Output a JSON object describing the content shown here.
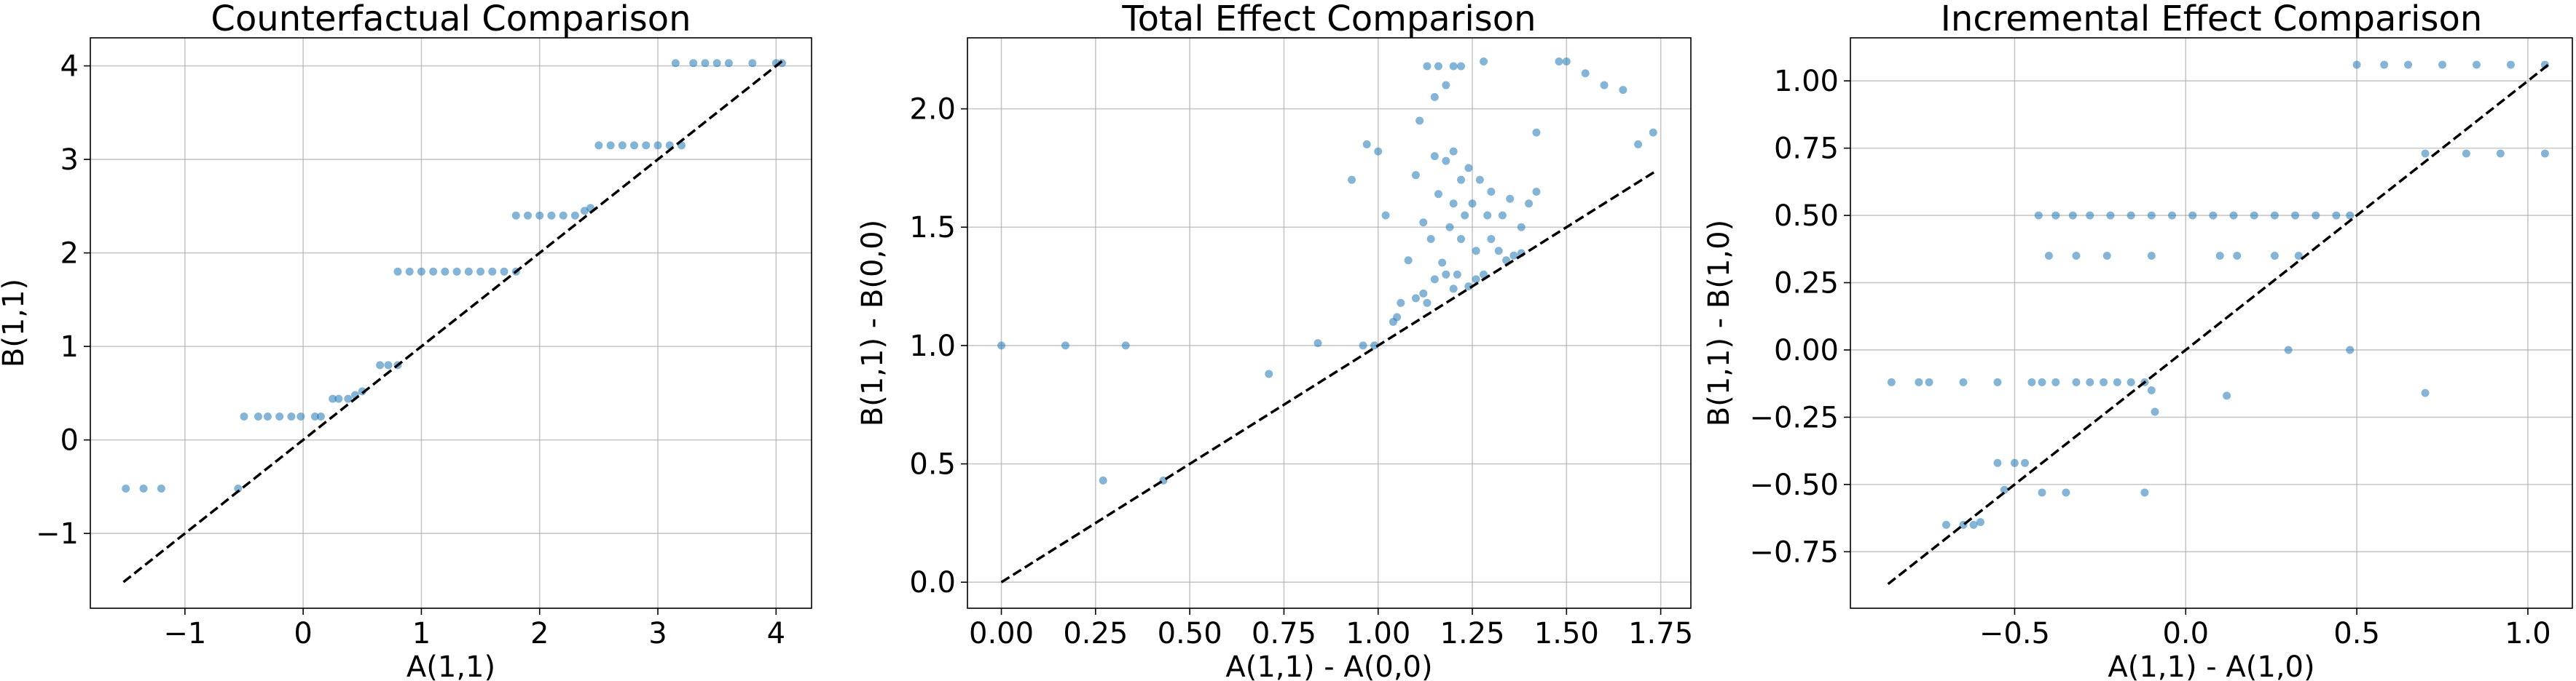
{
  "colors": {
    "points": "#1f77b4",
    "reference_line": "#000000",
    "grid": "#b0b0b0"
  },
  "chart_data": [
    {
      "type": "scatter",
      "title": "Counterfactual Comparison",
      "xlabel": "A(1,1)",
      "ylabel": "B(1,1)",
      "xlim": [
        -1.8,
        4.3
      ],
      "ylim": [
        -1.8,
        4.3
      ],
      "xticks": [
        -1,
        0,
        1,
        2,
        3,
        4
      ],
      "yticks": [
        -1,
        0,
        1,
        2,
        3,
        4
      ],
      "grid": true,
      "reference_line": [
        [
          -1.52,
          -1.52
        ],
        [
          4.05,
          4.05
        ]
      ],
      "points": [
        [
          -1.5,
          -0.52
        ],
        [
          -1.35,
          -0.52
        ],
        [
          -1.2,
          -0.52
        ],
        [
          -0.55,
          -0.52
        ],
        [
          -0.5,
          0.25
        ],
        [
          -0.38,
          0.25
        ],
        [
          -0.3,
          0.25
        ],
        [
          -0.2,
          0.25
        ],
        [
          -0.1,
          0.25
        ],
        [
          -0.02,
          0.25
        ],
        [
          0.1,
          0.25
        ],
        [
          0.15,
          0.25
        ],
        [
          0.25,
          0.44
        ],
        [
          0.3,
          0.44
        ],
        [
          0.38,
          0.44
        ],
        [
          0.44,
          0.48
        ],
        [
          0.5,
          0.52
        ],
        [
          0.65,
          0.8
        ],
        [
          0.72,
          0.8
        ],
        [
          0.8,
          0.8
        ],
        [
          0.8,
          1.8
        ],
        [
          0.9,
          1.8
        ],
        [
          1.0,
          1.8
        ],
        [
          1.1,
          1.8
        ],
        [
          1.2,
          1.8
        ],
        [
          1.3,
          1.8
        ],
        [
          1.4,
          1.8
        ],
        [
          1.5,
          1.8
        ],
        [
          1.6,
          1.8
        ],
        [
          1.7,
          1.8
        ],
        [
          1.8,
          1.8
        ],
        [
          1.8,
          2.4
        ],
        [
          1.9,
          2.4
        ],
        [
          2.0,
          2.4
        ],
        [
          2.1,
          2.4
        ],
        [
          2.2,
          2.4
        ],
        [
          2.3,
          2.4
        ],
        [
          2.38,
          2.45
        ],
        [
          2.43,
          2.48
        ],
        [
          2.5,
          3.15
        ],
        [
          2.6,
          3.15
        ],
        [
          2.7,
          3.15
        ],
        [
          2.8,
          3.15
        ],
        [
          2.9,
          3.15
        ],
        [
          3.0,
          3.15
        ],
        [
          3.1,
          3.15
        ],
        [
          3.2,
          3.15
        ],
        [
          3.15,
          4.03
        ],
        [
          3.3,
          4.03
        ],
        [
          3.4,
          4.03
        ],
        [
          3.5,
          4.03
        ],
        [
          3.6,
          4.03
        ],
        [
          3.8,
          4.03
        ],
        [
          4.0,
          4.03
        ],
        [
          4.05,
          4.03
        ]
      ]
    },
    {
      "type": "scatter",
      "title": "Total Effect Comparison",
      "xlabel": "A(1,1) - A(0,0)",
      "ylabel": "B(1,1) - B(0,0)",
      "xlim": [
        -0.09,
        1.83
      ],
      "ylim": [
        -0.11,
        2.3
      ],
      "xticks": [
        0.0,
        0.25,
        0.5,
        0.75,
        1.0,
        1.25,
        1.5,
        1.75
      ],
      "xtick_labels": [
        "0.00",
        "0.25",
        "0.50",
        "0.75",
        "1.00",
        "1.25",
        "1.50",
        "1.75"
      ],
      "yticks": [
        0.0,
        0.5,
        1.0,
        1.5,
        2.0
      ],
      "ytick_labels": [
        "0.0",
        "0.5",
        "1.0",
        "1.5",
        "2.0"
      ],
      "grid": true,
      "reference_line": [
        [
          0.0,
          0.0
        ],
        [
          1.74,
          1.74
        ]
      ],
      "points": [
        [
          0.0,
          1.0
        ],
        [
          0.17,
          1.0
        ],
        [
          0.33,
          1.0
        ],
        [
          0.27,
          0.43
        ],
        [
          0.43,
          0.43
        ],
        [
          0.71,
          0.88
        ],
        [
          0.84,
          1.01
        ],
        [
          0.96,
          1.0
        ],
        [
          0.99,
          1.0
        ],
        [
          0.93,
          1.7
        ],
        [
          0.97,
          1.85
        ],
        [
          1.0,
          1.82
        ],
        [
          1.02,
          1.55
        ],
        [
          1.04,
          1.1
        ],
        [
          1.05,
          1.12
        ],
        [
          1.06,
          1.18
        ],
        [
          1.08,
          1.36
        ],
        [
          1.1,
          1.72
        ],
        [
          1.1,
          1.2
        ],
        [
          1.12,
          1.52
        ],
        [
          1.12,
          1.22
        ],
        [
          1.14,
          1.45
        ],
        [
          1.15,
          1.8
        ],
        [
          1.15,
          1.28
        ],
        [
          1.16,
          1.64
        ],
        [
          1.17,
          1.35
        ],
        [
          1.18,
          1.78
        ],
        [
          1.18,
          1.3
        ],
        [
          1.19,
          1.5
        ],
        [
          1.2,
          1.82
        ],
        [
          1.2,
          1.6
        ],
        [
          1.21,
          1.3
        ],
        [
          1.22,
          1.7
        ],
        [
          1.22,
          1.45
        ],
        [
          1.23,
          1.55
        ],
        [
          1.24,
          1.75
        ],
        [
          1.24,
          1.25
        ],
        [
          1.25,
          1.6
        ],
        [
          1.26,
          1.4
        ],
        [
          1.27,
          1.7
        ],
        [
          1.28,
          1.3
        ],
        [
          1.29,
          1.55
        ],
        [
          1.3,
          1.65
        ],
        [
          1.3,
          1.45
        ],
        [
          1.32,
          1.4
        ],
        [
          1.33,
          1.55
        ],
        [
          1.35,
          1.62
        ],
        [
          1.36,
          1.38
        ],
        [
          1.38,
          1.5
        ],
        [
          1.4,
          1.6
        ],
        [
          1.42,
          1.65
        ],
        [
          1.13,
          2.18
        ],
        [
          1.16,
          2.18
        ],
        [
          1.2,
          2.18
        ],
        [
          1.22,
          2.18
        ],
        [
          1.28,
          2.2
        ],
        [
          1.11,
          1.95
        ],
        [
          1.15,
          2.05
        ],
        [
          1.18,
          2.1
        ],
        [
          1.42,
          1.9
        ],
        [
          1.48,
          2.2
        ],
        [
          1.5,
          2.2
        ],
        [
          1.55,
          2.15
        ],
        [
          1.6,
          2.1
        ],
        [
          1.65,
          2.08
        ],
        [
          1.69,
          1.85
        ],
        [
          1.73,
          1.9
        ],
        [
          1.13,
          1.18
        ],
        [
          1.2,
          1.24
        ],
        [
          1.26,
          1.28
        ],
        [
          1.34,
          1.36
        ],
        [
          1.38,
          1.39
        ]
      ]
    },
    {
      "type": "scatter",
      "title": "Incremental Effect Comparison",
      "xlabel": "A(1,1) - A(1,0)",
      "ylabel": "B(1,1) - B(1,0)",
      "xlim": [
        -0.98,
        1.13
      ],
      "ylim": [
        -0.96,
        1.16
      ],
      "xticks": [
        -0.5,
        0.0,
        0.5,
        1.0
      ],
      "xtick_labels": [
        "−0.5",
        "0.0",
        "0.5",
        "1.0"
      ],
      "yticks": [
        -0.75,
        -0.5,
        -0.25,
        0.0,
        0.25,
        0.5,
        0.75,
        1.0
      ],
      "ytick_labels": [
        "−0.75",
        "−0.50",
        "−0.25",
        "0.00",
        "0.25",
        "0.50",
        "0.75",
        "1.00"
      ],
      "grid": true,
      "reference_line": [
        [
          -0.87,
          -0.87
        ],
        [
          1.06,
          1.06
        ]
      ],
      "points": [
        [
          -0.86,
          -0.12
        ],
        [
          -0.78,
          -0.12
        ],
        [
          -0.75,
          -0.12
        ],
        [
          -0.65,
          -0.12
        ],
        [
          -0.55,
          -0.12
        ],
        [
          -0.45,
          -0.12
        ],
        [
          -0.42,
          -0.12
        ],
        [
          -0.38,
          -0.12
        ],
        [
          -0.32,
          -0.12
        ],
        [
          -0.28,
          -0.12
        ],
        [
          -0.24,
          -0.12
        ],
        [
          -0.2,
          -0.12
        ],
        [
          -0.16,
          -0.12
        ],
        [
          -0.12,
          -0.12
        ],
        [
          -0.1,
          -0.15
        ],
        [
          -0.55,
          -0.42
        ],
        [
          -0.5,
          -0.42
        ],
        [
          -0.47,
          -0.42
        ],
        [
          -0.53,
          -0.52
        ],
        [
          -0.42,
          -0.53
        ],
        [
          -0.35,
          -0.53
        ],
        [
          -0.12,
          -0.53
        ],
        [
          -0.7,
          -0.65
        ],
        [
          -0.65,
          -0.65
        ],
        [
          -0.62,
          -0.65
        ],
        [
          -0.6,
          -0.64
        ],
        [
          -0.43,
          0.5
        ],
        [
          -0.38,
          0.5
        ],
        [
          -0.33,
          0.5
        ],
        [
          -0.28,
          0.5
        ],
        [
          -0.22,
          0.5
        ],
        [
          -0.16,
          0.5
        ],
        [
          -0.1,
          0.5
        ],
        [
          -0.04,
          0.5
        ],
        [
          0.02,
          0.5
        ],
        [
          0.08,
          0.5
        ],
        [
          0.14,
          0.5
        ],
        [
          0.2,
          0.5
        ],
        [
          0.26,
          0.5
        ],
        [
          0.32,
          0.5
        ],
        [
          0.38,
          0.5
        ],
        [
          0.44,
          0.5
        ],
        [
          0.48,
          0.5
        ],
        [
          -0.4,
          0.35
        ],
        [
          -0.32,
          0.35
        ],
        [
          -0.23,
          0.35
        ],
        [
          -0.1,
          0.35
        ],
        [
          0.1,
          0.35
        ],
        [
          0.15,
          0.35
        ],
        [
          0.26,
          0.35
        ],
        [
          0.33,
          0.35
        ],
        [
          0.3,
          0.0
        ],
        [
          0.48,
          0.0
        ],
        [
          0.12,
          -0.17
        ],
        [
          0.7,
          -0.16
        ],
        [
          -0.09,
          -0.23
        ],
        [
          0.5,
          1.06
        ],
        [
          0.58,
          1.06
        ],
        [
          0.65,
          1.06
        ],
        [
          0.75,
          1.06
        ],
        [
          0.85,
          1.06
        ],
        [
          0.95,
          1.06
        ],
        [
          1.05,
          1.06
        ],
        [
          0.7,
          0.73
        ],
        [
          0.82,
          0.73
        ],
        [
          0.92,
          0.73
        ],
        [
          1.05,
          0.73
        ]
      ]
    }
  ]
}
